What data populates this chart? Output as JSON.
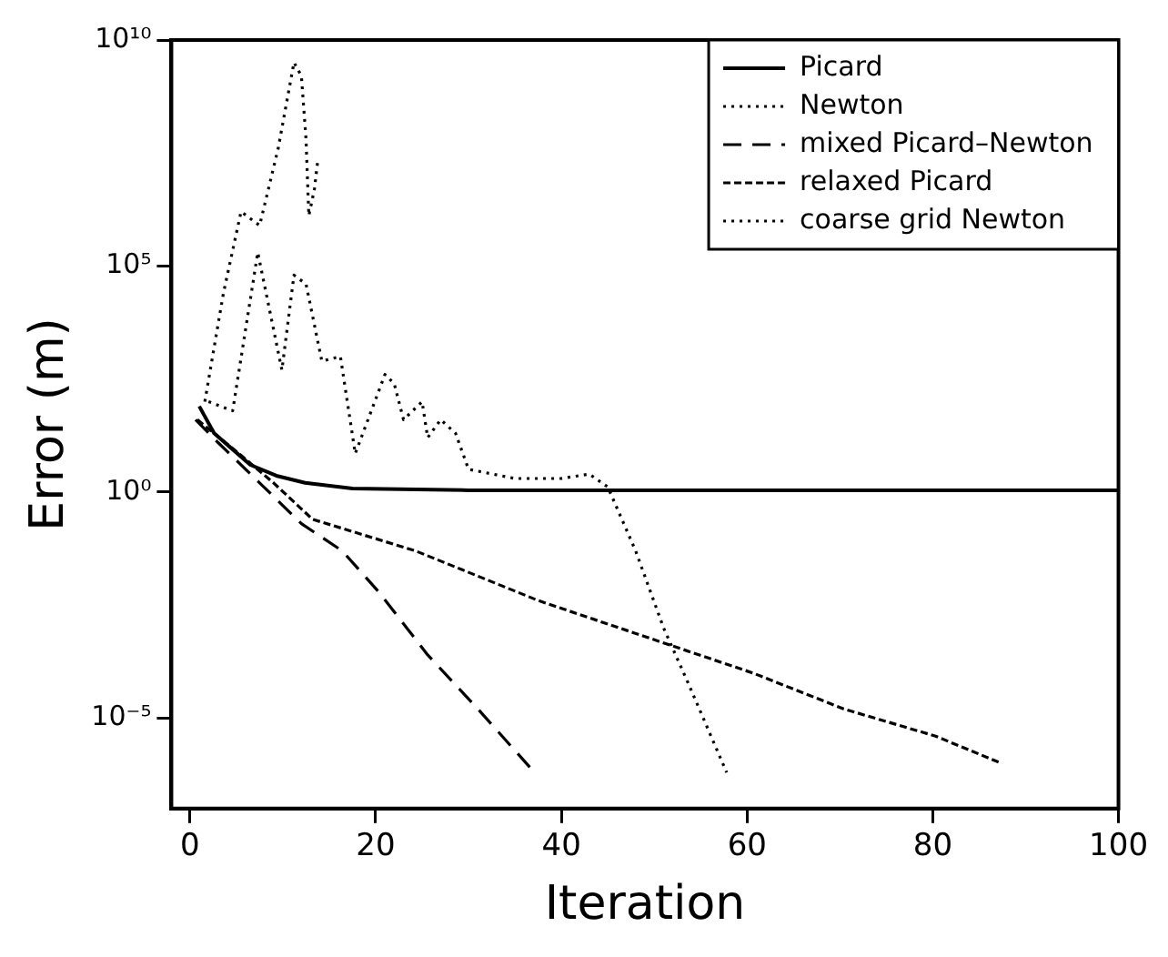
{
  "chart_data": {
    "type": "line",
    "xlabel": "Iteration",
    "ylabel": "Error (m)",
    "log": "y",
    "grid": false,
    "legend": "top right",
    "marker": "none",
    "xlim": [
      -2,
      100
    ],
    "xticks": [
      0,
      20,
      40,
      60,
      80,
      100
    ],
    "ylim": [
      1e-07,
      10000000000.0
    ],
    "yticks": [
      {
        "value": 1e-05,
        "label": "10⁻⁵"
      },
      {
        "value": 1,
        "label": "10⁰"
      },
      {
        "value": 100000.0,
        "label": "10⁵"
      },
      {
        "value": 10000000000.0,
        "label": "10¹⁰"
      }
    ],
    "series": [
      {
        "name": "Picard",
        "color": "#000000",
        "line_style": "solid",
        "x": [
          1,
          2.6,
          6.5,
          9.3,
          12.4,
          17.5,
          30,
          50,
          70,
          100
        ],
        "values": [
          79,
          20,
          4,
          2.3,
          1.6,
          1.2,
          1.1,
          1.1,
          1.1,
          1.1
        ]
      },
      {
        "name": "Newton",
        "color": "#000000",
        "line_style": "dotted",
        "x": [
          1.6,
          3.6,
          5.5,
          7.5,
          9.5,
          11.2,
          12,
          12.5,
          12.8,
          13.4,
          13.8
        ],
        "values": [
          100,
          25000,
          1600000,
          790000,
          40000000,
          3200000000,
          1600000000,
          63000000,
          1300000,
          5000000,
          25000000
        ]
      },
      {
        "name": "mixed Picard–Newton",
        "color": "#000000",
        "line_style": "dashed",
        "x": [
          0.6,
          3,
          7.5,
          12,
          16.4,
          20.3,
          25.6,
          31,
          37.1
        ],
        "values": [
          40,
          12.6,
          1.6,
          0.2,
          0.05,
          0.0063,
          0.00025,
          1.6e-05,
          6.3e-07
        ]
      },
      {
        "name": "relaxed Picard",
        "color": "#000000",
        "line_style": "dashed",
        "x": [
          0.8,
          5,
          9,
          13.2,
          24.3,
          37.5,
          51.9,
          60.6,
          70.4,
          80.3,
          87.4
        ],
        "values": [
          40,
          7.9,
          1.6,
          0.25,
          0.05,
          0.004,
          0.0004,
          0.0001,
          1.6e-05,
          4e-06,
          1e-06
        ]
      },
      {
        "name": "coarse grid Newton",
        "color": "#000000",
        "line_style": "dotted",
        "x": [
          2,
          4.6,
          7.3,
          9.9,
          11.2,
          12.5,
          14.2,
          16.2,
          17.8,
          21,
          22,
          23,
          25,
          25.6,
          27,
          28.6,
          30,
          35,
          40,
          43,
          45,
          48,
          51,
          53.6,
          57.8
        ],
        "values": [
          100,
          63,
          200000,
          500,
          63000,
          40000,
          790,
          1000,
          7.1,
          400,
          250,
          40,
          100,
          16,
          40,
          20,
          3.2,
          2,
          2,
          2.5,
          1.3,
          0.05,
          0.001,
          6.3e-05,
          6.3e-07
        ]
      }
    ]
  }
}
